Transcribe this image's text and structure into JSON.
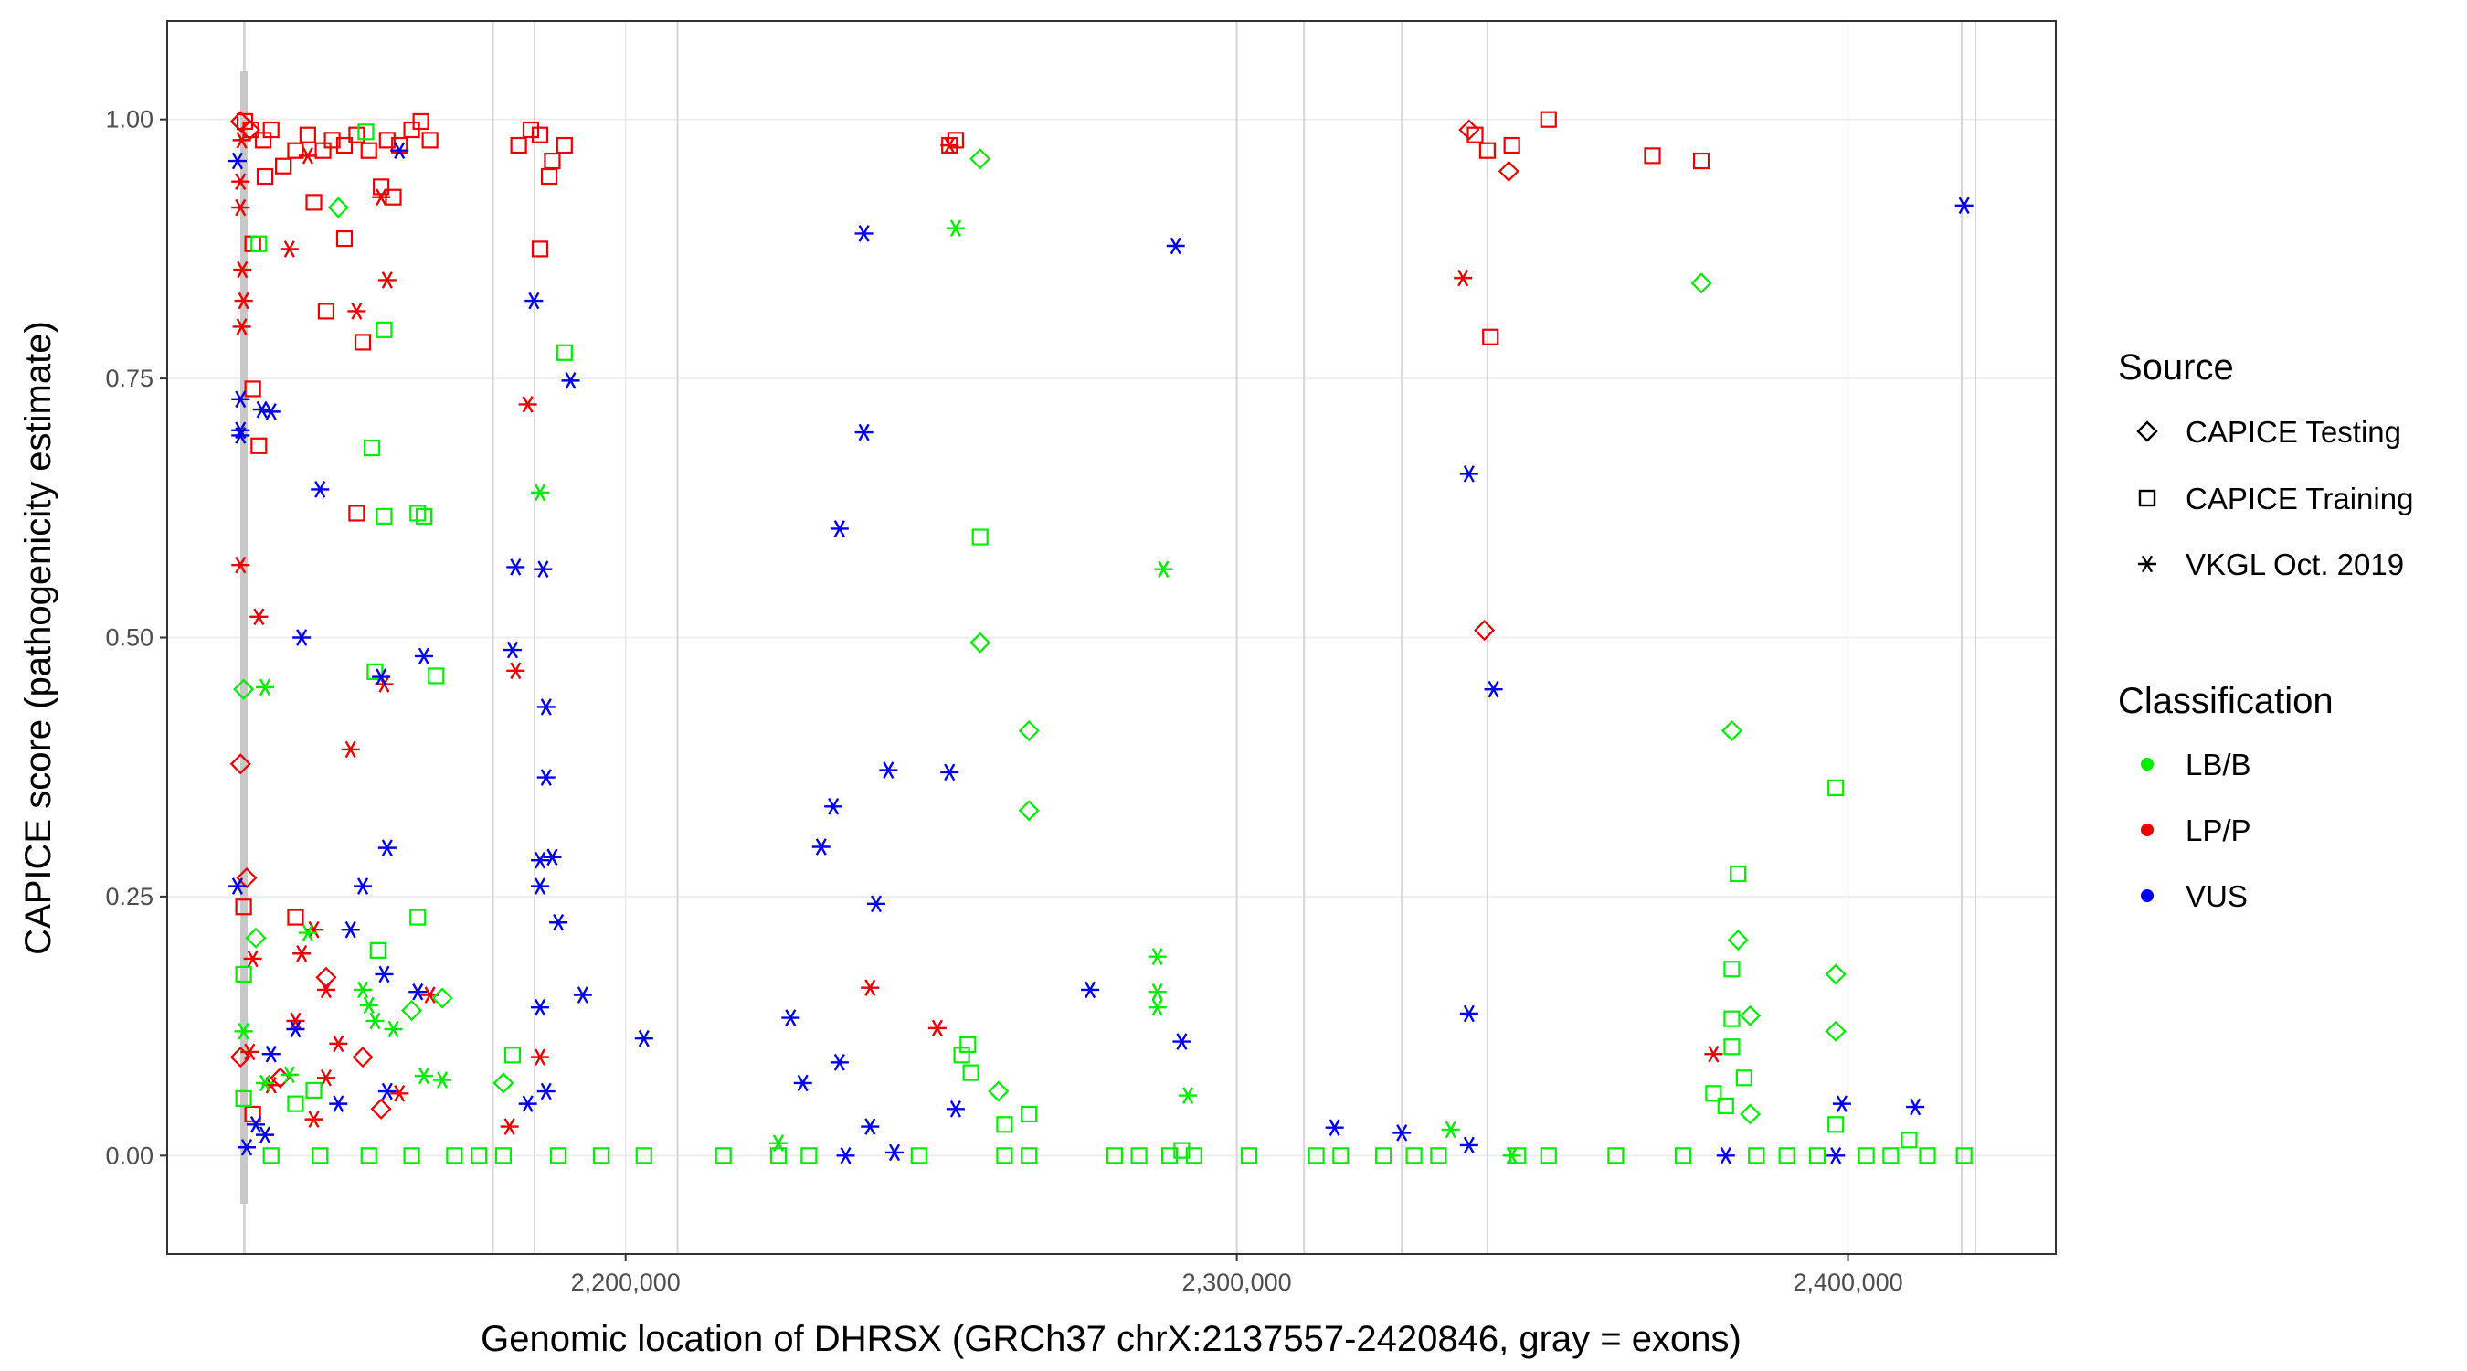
{
  "chart_data": {
    "type": "scatter",
    "xlabel": "Genomic location of DHRSX (GRCh37 chrX:2137557-2420846, gray = exons)",
    "ylabel": "CAPICE score (pathogenicity estimate)",
    "xlim": [
      2125000,
      2434000
    ],
    "ylim": [
      -0.095,
      1.095
    ],
    "x_ticks": [
      2200000,
      2300000,
      2400000
    ],
    "x_tick_labels": [
      "2,200,000",
      "2,300,000",
      "2,400,000"
    ],
    "y_ticks": [
      0,
      0.25,
      0.5,
      0.75,
      1
    ],
    "y_tick_labels": [
      "0.00",
      "0.25",
      "0.50",
      "0.75",
      "1.00"
    ],
    "grid": "major",
    "exons": [
      2137557,
      2137700,
      2178300,
      2185100,
      2208500,
      2300000,
      2311000,
      2327000,
      2341000,
      2418600,
      2420846
    ],
    "legend": {
      "source_title": "Source",
      "source_items": [
        {
          "shape": "diamond",
          "label": "CAPICE Testing"
        },
        {
          "shape": "square",
          "label": "CAPICE Training"
        },
        {
          "shape": "asterisk",
          "label": "VKGL Oct. 2019"
        }
      ],
      "class_title": "Classification",
      "class_items": [
        {
          "key": "LB/B",
          "label": "LB/B",
          "color": "#00ee00"
        },
        {
          "key": "LP/P",
          "label": "LP/P",
          "color": "#ee0000"
        },
        {
          "key": "VUS",
          "label": "VUS",
          "color": "#0000ee"
        }
      ]
    },
    "series": [
      {
        "source": "CAPICE Training",
        "class": "LP/P",
        "points": [
          [
            2137700,
            0.998
          ],
          [
            2138700,
            0.99
          ],
          [
            2140700,
            0.98
          ],
          [
            2142000,
            0.99
          ],
          [
            2146000,
            0.97
          ],
          [
            2148000,
            0.985
          ],
          [
            2150500,
            0.97
          ],
          [
            2152000,
            0.98
          ],
          [
            2154000,
            0.975
          ],
          [
            2156000,
            0.985
          ],
          [
            2158000,
            0.97
          ],
          [
            2161000,
            0.98
          ],
          [
            2163000,
            0.975
          ],
          [
            2165000,
            0.99
          ],
          [
            2166500,
            0.998
          ],
          [
            2168000,
            0.98
          ],
          [
            2141000,
            0.945
          ],
          [
            2144000,
            0.955
          ],
          [
            2149000,
            0.92
          ],
          [
            2160000,
            0.935
          ],
          [
            2162000,
            0.925
          ],
          [
            2139000,
            0.88
          ],
          [
            2154000,
            0.885
          ],
          [
            2151000,
            0.815
          ],
          [
            2157000,
            0.785
          ],
          [
            2139000,
            0.74
          ],
          [
            2140000,
            0.685
          ],
          [
            2156000,
            0.62
          ],
          [
            2137500,
            0.24
          ],
          [
            2146000,
            0.23
          ],
          [
            2139000,
            0.04
          ],
          [
            2182500,
            0.975
          ],
          [
            2184500,
            0.99
          ],
          [
            2186000,
            0.985
          ],
          [
            2188000,
            0.96
          ],
          [
            2190000,
            0.975
          ],
          [
            2186000,
            0.875
          ],
          [
            2187500,
            0.945
          ],
          [
            2254000,
            0.98
          ],
          [
            2253000,
            0.975
          ],
          [
            2339000,
            0.985
          ],
          [
            2341000,
            0.97
          ],
          [
            2345000,
            0.975
          ],
          [
            2351000,
            1.0
          ],
          [
            2368000,
            0.965
          ],
          [
            2376000,
            0.96
          ],
          [
            2341500,
            0.79
          ]
        ]
      },
      {
        "source": "CAPICE Testing",
        "class": "LP/P",
        "points": [
          [
            2137000,
            0.998
          ],
          [
            2138500,
            0.99
          ],
          [
            2137000,
            0.378
          ],
          [
            2138000,
            0.268
          ],
          [
            2137000,
            0.095
          ],
          [
            2151000,
            0.172
          ],
          [
            2157000,
            0.095
          ],
          [
            2160000,
            0.045
          ],
          [
            2143500,
            0.075
          ],
          [
            2338000,
            0.99
          ],
          [
            2344500,
            0.95
          ],
          [
            2340500,
            0.507
          ]
        ]
      },
      {
        "source": "VKGL Oct. 2019",
        "class": "LP/P",
        "points": [
          [
            2137200,
            0.98
          ],
          [
            2137000,
            0.94
          ],
          [
            2137000,
            0.915
          ],
          [
            2137300,
            0.855
          ],
          [
            2137500,
            0.825
          ],
          [
            2137200,
            0.8
          ],
          [
            2137000,
            0.57
          ],
          [
            2140000,
            0.52
          ],
          [
            2139000,
            0.19
          ],
          [
            2138500,
            0.1
          ],
          [
            2145000,
            0.875
          ],
          [
            2148000,
            0.965
          ],
          [
            2156000,
            0.815
          ],
          [
            2161000,
            0.845
          ],
          [
            2160000,
            0.925
          ],
          [
            2160500,
            0.455
          ],
          [
            2155000,
            0.392
          ],
          [
            2149000,
            0.218
          ],
          [
            2147000,
            0.195
          ],
          [
            2151000,
            0.16
          ],
          [
            2146000,
            0.13
          ],
          [
            2153000,
            0.108
          ],
          [
            2151000,
            0.075
          ],
          [
            2142000,
            0.068
          ],
          [
            2149000,
            0.035
          ],
          [
            2163000,
            0.06
          ],
          [
            2168000,
            0.155
          ],
          [
            2184000,
            0.725
          ],
          [
            2182000,
            0.468
          ],
          [
            2186000,
            0.095
          ],
          [
            2181000,
            0.028
          ],
          [
            2188000,
            0.288
          ],
          [
            2240000,
            0.162
          ],
          [
            2251000,
            0.123
          ],
          [
            2253000,
            0.975
          ],
          [
            2337000,
            0.847
          ],
          [
            2378000,
            0.098
          ]
        ]
      },
      {
        "source": "CAPICE Training",
        "class": "LB/B",
        "points": [
          [
            2140000,
            0.88
          ],
          [
            2137500,
            0.175
          ],
          [
            2137500,
            0.055
          ],
          [
            2157500,
            0.988
          ],
          [
            2158500,
            0.683
          ],
          [
            2160500,
            0.797
          ],
          [
            2160500,
            0.617
          ],
          [
            2166000,
            0.62
          ],
          [
            2167000,
            0.617
          ],
          [
            2159000,
            0.467
          ],
          [
            2169000,
            0.463
          ],
          [
            2166000,
            0.23
          ],
          [
            2159500,
            0.198
          ],
          [
            2149000,
            0.063
          ],
          [
            2146000,
            0.05
          ],
          [
            2181500,
            0.097
          ],
          [
            2190000,
            0.775
          ],
          [
            2258000,
            0.597
          ],
          [
            2256000,
            0.107
          ],
          [
            2255000,
            0.097
          ],
          [
            2256500,
            0.08
          ],
          [
            2266000,
            0.04
          ],
          [
            2262000,
            0.03
          ],
          [
            2291000,
            0.005
          ],
          [
            2378000,
            0.06
          ],
          [
            2380000,
            0.048
          ],
          [
            2381000,
            0.105
          ],
          [
            2381000,
            0.132
          ],
          [
            2381000,
            0.18
          ],
          [
            2382000,
            0.272
          ],
          [
            2383000,
            0.075
          ],
          [
            2398000,
            0.355
          ],
          [
            2398000,
            0.03
          ],
          [
            2410000,
            0.015
          ],
          [
            2142000,
            0.0
          ],
          [
            2150000,
            0.0
          ],
          [
            2158000,
            0.0
          ],
          [
            2165000,
            0.0
          ],
          [
            2172000,
            0.0
          ],
          [
            2176000,
            0.0
          ],
          [
            2180000,
            0.0
          ],
          [
            2189000,
            0.0
          ],
          [
            2196000,
            0.0
          ],
          [
            2203000,
            0.0
          ],
          [
            2216000,
            0.0
          ],
          [
            2225000,
            0.0
          ],
          [
            2230000,
            0.0
          ],
          [
            2248000,
            0.0
          ],
          [
            2262000,
            0.0
          ],
          [
            2266000,
            0.0
          ],
          [
            2280000,
            0.0
          ],
          [
            2284000,
            0.0
          ],
          [
            2289000,
            0.0
          ],
          [
            2293000,
            0.0
          ],
          [
            2302000,
            0.0
          ],
          [
            2313000,
            0.0
          ],
          [
            2317000,
            0.0
          ],
          [
            2324000,
            0.0
          ],
          [
            2329000,
            0.0
          ],
          [
            2333000,
            0.0
          ],
          [
            2346000,
            0.0
          ],
          [
            2351000,
            0.0
          ],
          [
            2362000,
            0.0
          ],
          [
            2373000,
            0.0
          ],
          [
            2385000,
            0.0
          ],
          [
            2390000,
            0.0
          ],
          [
            2395000,
            0.0
          ],
          [
            2403000,
            0.0
          ],
          [
            2407000,
            0.0
          ],
          [
            2413000,
            0.0
          ],
          [
            2419000,
            0.0
          ]
        ]
      },
      {
        "source": "CAPICE Testing",
        "class": "LB/B",
        "points": [
          [
            2137500,
            0.45
          ],
          [
            2139500,
            0.21
          ],
          [
            2153000,
            0.915
          ],
          [
            2170000,
            0.152
          ],
          [
            2165000,
            0.14
          ],
          [
            2180000,
            0.07
          ],
          [
            2258000,
            0.962
          ],
          [
            2258000,
            0.495
          ],
          [
            2266000,
            0.41
          ],
          [
            2266000,
            0.333
          ],
          [
            2261000,
            0.062
          ],
          [
            2376000,
            0.842
          ],
          [
            2381000,
            0.41
          ],
          [
            2382000,
            0.208
          ],
          [
            2384000,
            0.135
          ],
          [
            2384000,
            0.04
          ],
          [
            2398000,
            0.175
          ],
          [
            2398000,
            0.12
          ]
        ]
      },
      {
        "source": "VKGL Oct. 2019",
        "class": "LB/B",
        "points": [
          [
            2137500,
            0.12
          ],
          [
            2141000,
            0.452
          ],
          [
            2141000,
            0.07
          ],
          [
            2145000,
            0.078
          ],
          [
            2148000,
            0.215
          ],
          [
            2157000,
            0.16
          ],
          [
            2158000,
            0.145
          ],
          [
            2159000,
            0.13
          ],
          [
            2162000,
            0.122
          ],
          [
            2167000,
            0.077
          ],
          [
            2170000,
            0.073
          ],
          [
            2186000,
            0.64
          ],
          [
            2254000,
            0.895
          ],
          [
            2288000,
            0.566
          ],
          [
            2287000,
            0.192
          ],
          [
            2287000,
            0.158
          ],
          [
            2287000,
            0.143
          ],
          [
            2292000,
            0.058
          ],
          [
            2225000,
            0.012
          ],
          [
            2335000,
            0.025
          ],
          [
            2345000,
            0.0
          ]
        ]
      },
      {
        "source": "VKGL Oct. 2019",
        "class": "VUS",
        "points": [
          [
            2136500,
            0.96
          ],
          [
            2137000,
            0.73
          ],
          [
            2137000,
            0.7
          ],
          [
            2137000,
            0.695
          ],
          [
            2140500,
            0.72
          ],
          [
            2142000,
            0.718
          ],
          [
            2136500,
            0.26
          ],
          [
            2142000,
            0.098
          ],
          [
            2139500,
            0.03
          ],
          [
            2141000,
            0.02
          ],
          [
            2138000,
            0.008
          ],
          [
            2150000,
            0.643
          ],
          [
            2147000,
            0.5
          ],
          [
            2146000,
            0.122
          ],
          [
            2153000,
            0.05
          ],
          [
            2155000,
            0.218
          ],
          [
            2157000,
            0.26
          ],
          [
            2160000,
            0.462
          ],
          [
            2160500,
            0.175
          ],
          [
            2161000,
            0.297
          ],
          [
            2161000,
            0.062
          ],
          [
            2166000,
            0.158
          ],
          [
            2167000,
            0.482
          ],
          [
            2163000,
            0.97
          ],
          [
            2185000,
            0.825
          ],
          [
            2182000,
            0.568
          ],
          [
            2186500,
            0.566
          ],
          [
            2181500,
            0.488
          ],
          [
            2187000,
            0.433
          ],
          [
            2187000,
            0.365
          ],
          [
            2186000,
            0.285
          ],
          [
            2188000,
            0.288
          ],
          [
            2186000,
            0.26
          ],
          [
            2189000,
            0.225
          ],
          [
            2191000,
            0.748
          ],
          [
            2193000,
            0.155
          ],
          [
            2186000,
            0.143
          ],
          [
            2187000,
            0.062
          ],
          [
            2184000,
            0.05
          ],
          [
            2203000,
            0.113
          ],
          [
            2227000,
            0.133
          ],
          [
            2232000,
            0.298
          ],
          [
            2234000,
            0.337
          ],
          [
            2235000,
            0.605
          ],
          [
            2239000,
            0.89
          ],
          [
            2239000,
            0.698
          ],
          [
            2243000,
            0.372
          ],
          [
            2241000,
            0.243
          ],
          [
            2253000,
            0.37
          ],
          [
            2235000,
            0.09
          ],
          [
            2229000,
            0.07
          ],
          [
            2240000,
            0.028
          ],
          [
            2254000,
            0.045
          ],
          [
            2276000,
            0.16
          ],
          [
            2290000,
            0.878
          ],
          [
            2291000,
            0.11
          ],
          [
            2316000,
            0.027
          ],
          [
            2327000,
            0.022
          ],
          [
            2338000,
            0.658
          ],
          [
            2342000,
            0.45
          ],
          [
            2338000,
            0.137
          ],
          [
            2380000,
            0.0
          ],
          [
            2398000,
            0.0
          ],
          [
            2399000,
            0.05
          ],
          [
            2411000,
            0.047
          ],
          [
            2419000,
            0.917
          ],
          [
            2236000,
            0.0
          ],
          [
            2244000,
            0.003
          ],
          [
            2338000,
            0.01
          ]
        ]
      }
    ]
  }
}
